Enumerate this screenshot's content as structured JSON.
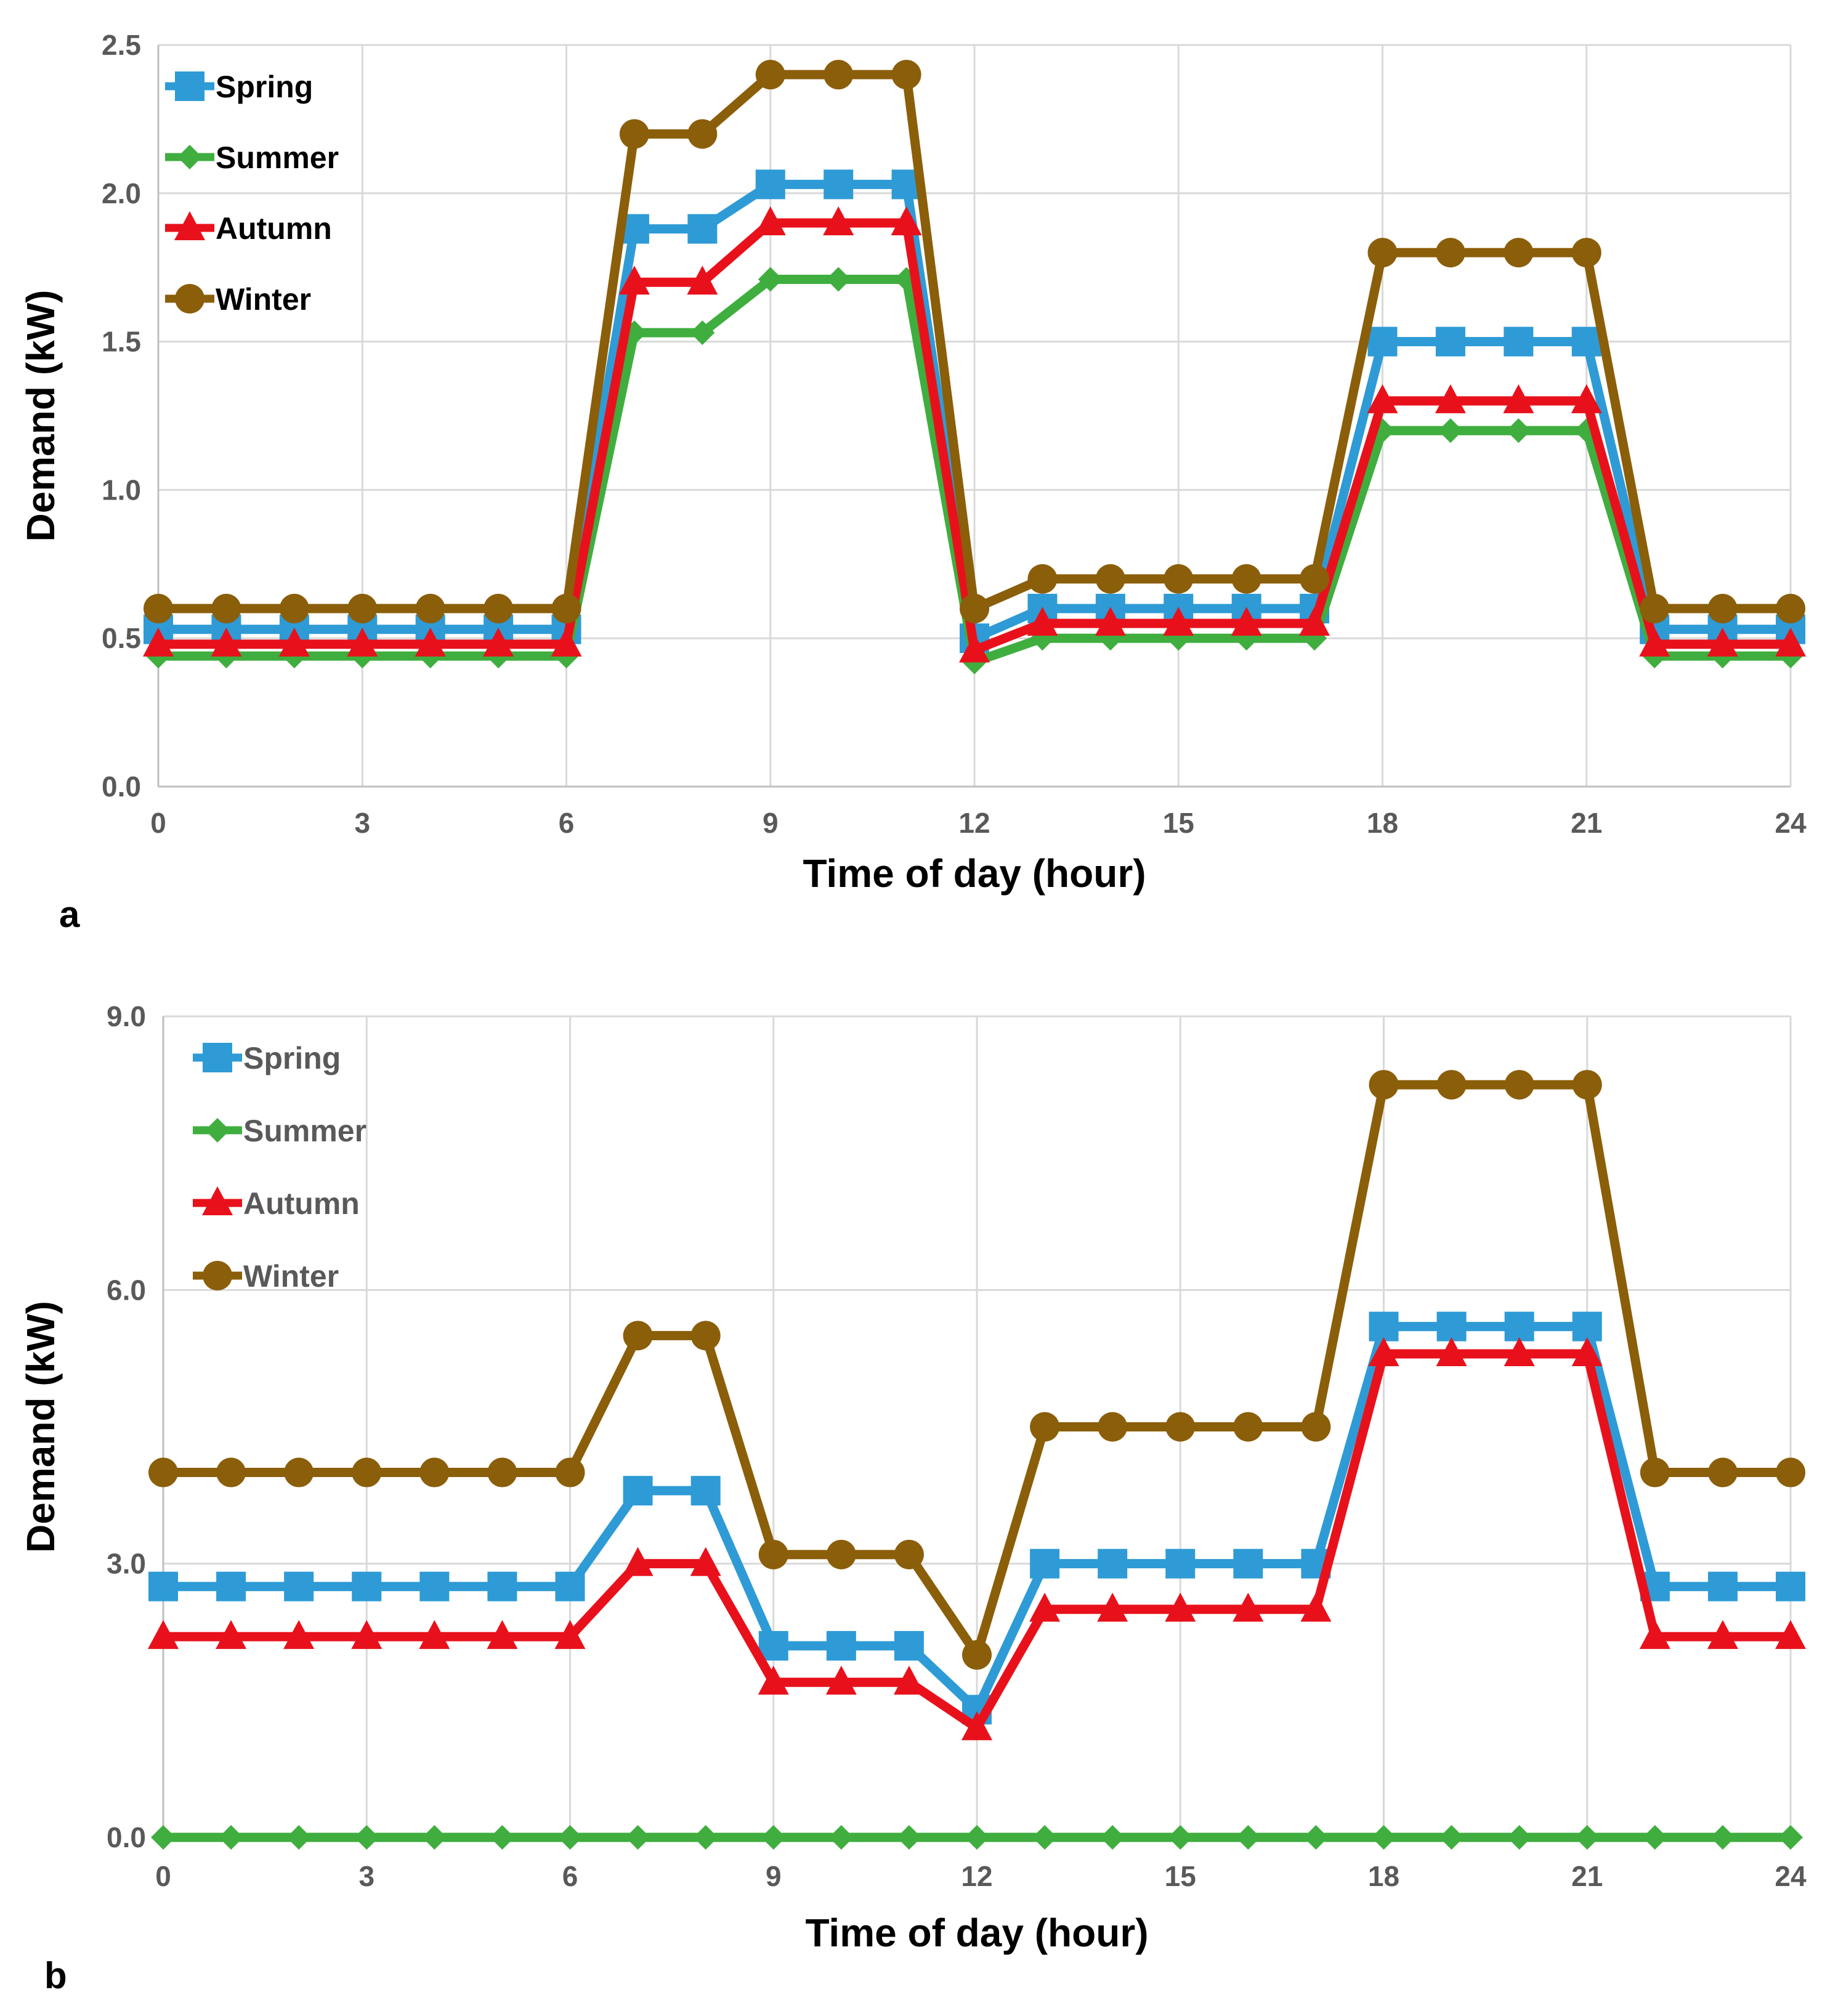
{
  "chart_data": [
    {
      "type": "line",
      "panel_label": "a",
      "title": "",
      "xlabel": "Time of day (hour)",
      "ylabel": "Demand (kW)",
      "xlim": [
        0,
        24
      ],
      "ylim": [
        0,
        2.5
      ],
      "xticks": [
        "0",
        "3",
        "6",
        "9",
        "12",
        "15",
        "18",
        "21",
        "24"
      ],
      "yticks": [
        "0.0",
        "0.5",
        "1.0",
        "1.5",
        "2.0",
        "2.5"
      ],
      "grid": true,
      "legend_position": "top-left",
      "x": [
        0,
        1,
        2,
        3,
        4,
        5,
        6,
        7,
        8,
        9,
        10,
        11,
        12,
        13,
        14,
        15,
        16,
        17,
        18,
        19,
        20,
        21,
        22,
        23,
        24
      ],
      "series": [
        {
          "name": "Spring",
          "color": "#2e9bd6",
          "marker": "square",
          "values": [
            0.53,
            0.53,
            0.53,
            0.53,
            0.53,
            0.53,
            0.53,
            1.88,
            1.88,
            2.03,
            2.03,
            2.03,
            0.5,
            0.6,
            0.6,
            0.6,
            0.6,
            0.6,
            1.5,
            1.5,
            1.5,
            1.5,
            0.53,
            0.53,
            0.53
          ]
        },
        {
          "name": "Summer",
          "color": "#3fae3f",
          "marker": "diamond",
          "values": [
            0.44,
            0.44,
            0.44,
            0.44,
            0.44,
            0.44,
            0.44,
            1.53,
            1.53,
            1.71,
            1.71,
            1.71,
            0.42,
            0.5,
            0.5,
            0.5,
            0.5,
            0.5,
            1.2,
            1.2,
            1.2,
            1.2,
            0.44,
            0.44,
            0.44
          ]
        },
        {
          "name": "Autumn",
          "color": "#e8111b",
          "marker": "triangle",
          "values": [
            0.48,
            0.48,
            0.48,
            0.48,
            0.48,
            0.48,
            0.48,
            1.7,
            1.7,
            1.9,
            1.9,
            1.9,
            0.46,
            0.55,
            0.55,
            0.55,
            0.55,
            0.55,
            1.3,
            1.3,
            1.3,
            1.3,
            0.48,
            0.48,
            0.48
          ]
        },
        {
          "name": "Winter",
          "color": "#8b5e0a",
          "marker": "circle",
          "values": [
            0.6,
            0.6,
            0.6,
            0.6,
            0.6,
            0.6,
            0.6,
            2.2,
            2.2,
            2.4,
            2.4,
            2.4,
            0.6,
            0.7,
            0.7,
            0.7,
            0.7,
            0.7,
            1.8,
            1.8,
            1.8,
            1.8,
            0.6,
            0.6,
            0.6
          ]
        }
      ]
    },
    {
      "type": "line",
      "panel_label": "b",
      "title": "",
      "xlabel": "Time of day (hour)",
      "ylabel": "Demand (kW)",
      "xlim": [
        0,
        24
      ],
      "ylim": [
        0,
        9
      ],
      "xticks": [
        "0",
        "3",
        "6",
        "9",
        "12",
        "15",
        "18",
        "21",
        "24"
      ],
      "yticks": [
        "0.0",
        "3.0",
        "6.0",
        "9.0"
      ],
      "grid": true,
      "legend_position": "top-left",
      "x": [
        0,
        1,
        2,
        3,
        4,
        5,
        6,
        7,
        8,
        9,
        10,
        11,
        12,
        13,
        14,
        15,
        16,
        17,
        18,
        19,
        20,
        21,
        22,
        23,
        24
      ],
      "series": [
        {
          "name": "Spring",
          "color": "#2e9bd6",
          "marker": "square",
          "values": [
            2.75,
            2.75,
            2.75,
            2.75,
            2.75,
            2.75,
            2.75,
            3.8,
            3.8,
            2.1,
            2.1,
            2.1,
            1.4,
            3.0,
            3.0,
            3.0,
            3.0,
            3.0,
            5.6,
            5.6,
            5.6,
            5.6,
            2.75,
            2.75,
            2.75
          ]
        },
        {
          "name": "Summer",
          "color": "#3fae3f",
          "marker": "diamond",
          "values": [
            0,
            0,
            0,
            0,
            0,
            0,
            0,
            0,
            0,
            0,
            0,
            0,
            0,
            0,
            0,
            0,
            0,
            0,
            0,
            0,
            0,
            0,
            0,
            0,
            0
          ]
        },
        {
          "name": "Autumn",
          "color": "#e8111b",
          "marker": "triangle",
          "values": [
            2.2,
            2.2,
            2.2,
            2.2,
            2.2,
            2.2,
            2.2,
            3.0,
            3.0,
            1.7,
            1.7,
            1.7,
            1.2,
            2.5,
            2.5,
            2.5,
            2.5,
            2.5,
            5.3,
            5.3,
            5.3,
            5.3,
            2.2,
            2.2,
            2.2
          ]
        },
        {
          "name": "Winter",
          "color": "#8b5e0a",
          "marker": "circle",
          "values": [
            4.0,
            4.0,
            4.0,
            4.0,
            4.0,
            4.0,
            4.0,
            5.5,
            5.5,
            3.1,
            3.1,
            3.1,
            2.0,
            4.5,
            4.5,
            4.5,
            4.5,
            4.5,
            8.25,
            8.25,
            8.25,
            8.25,
            4.0,
            4.0,
            4.0
          ]
        }
      ]
    }
  ]
}
